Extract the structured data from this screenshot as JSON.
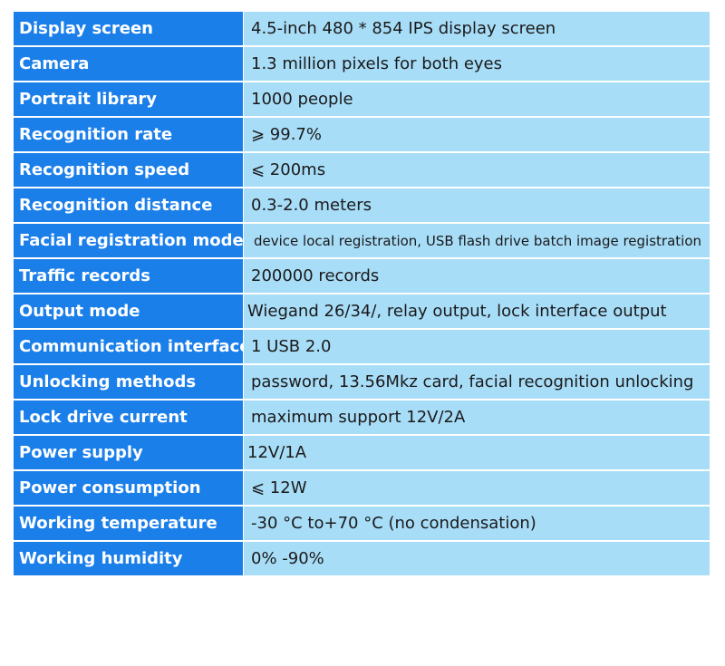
{
  "spec_table": {
    "rows": [
      {
        "label": "Display screen",
        "value": "4.5-inch 480 * 854 IPS display screen"
      },
      {
        "label": "Camera",
        "value": "1.3 million pixels for both eyes"
      },
      {
        "label": "Portrait library",
        "value": "1000 people"
      },
      {
        "label": "Recognition rate",
        "value": "⩾ 99.7%"
      },
      {
        "label": "Recognition speed",
        "value": "⩽ 200ms"
      },
      {
        "label": "Recognition distance",
        "value": "0.3-2.0 meters"
      },
      {
        "label": "Facial registration mode",
        "value": "device local registration, USB flash drive batch image registration"
      },
      {
        "label": "Traffic records",
        "value": "200000 records"
      },
      {
        "label": "Output mode",
        "value": "Wiegand 26/34/, relay output, lock interface output"
      },
      {
        "label": "Communication interface",
        "value": "1 USB 2.0"
      },
      {
        "label": "Unlocking methods",
        "value": "password, 13.56Mkz card, facial recognition unlocking"
      },
      {
        "label": "Lock drive current",
        "value": "maximum support 12V/2A"
      },
      {
        "label": "Power supply",
        "value": "12V/1A"
      },
      {
        "label": "Power consumption",
        "value": "⩽ 12W"
      },
      {
        "label": "Working temperature",
        "value": "-30 °C to+70 °C (no condensation)"
      },
      {
        "label": "Working humidity",
        "value": "0% -90%"
      }
    ]
  },
  "colors": {
    "label_background": "#1b7fea",
    "value_background": "#a8ddf8",
    "label_text": "#ffffff",
    "value_text": "#1a1a1a"
  }
}
